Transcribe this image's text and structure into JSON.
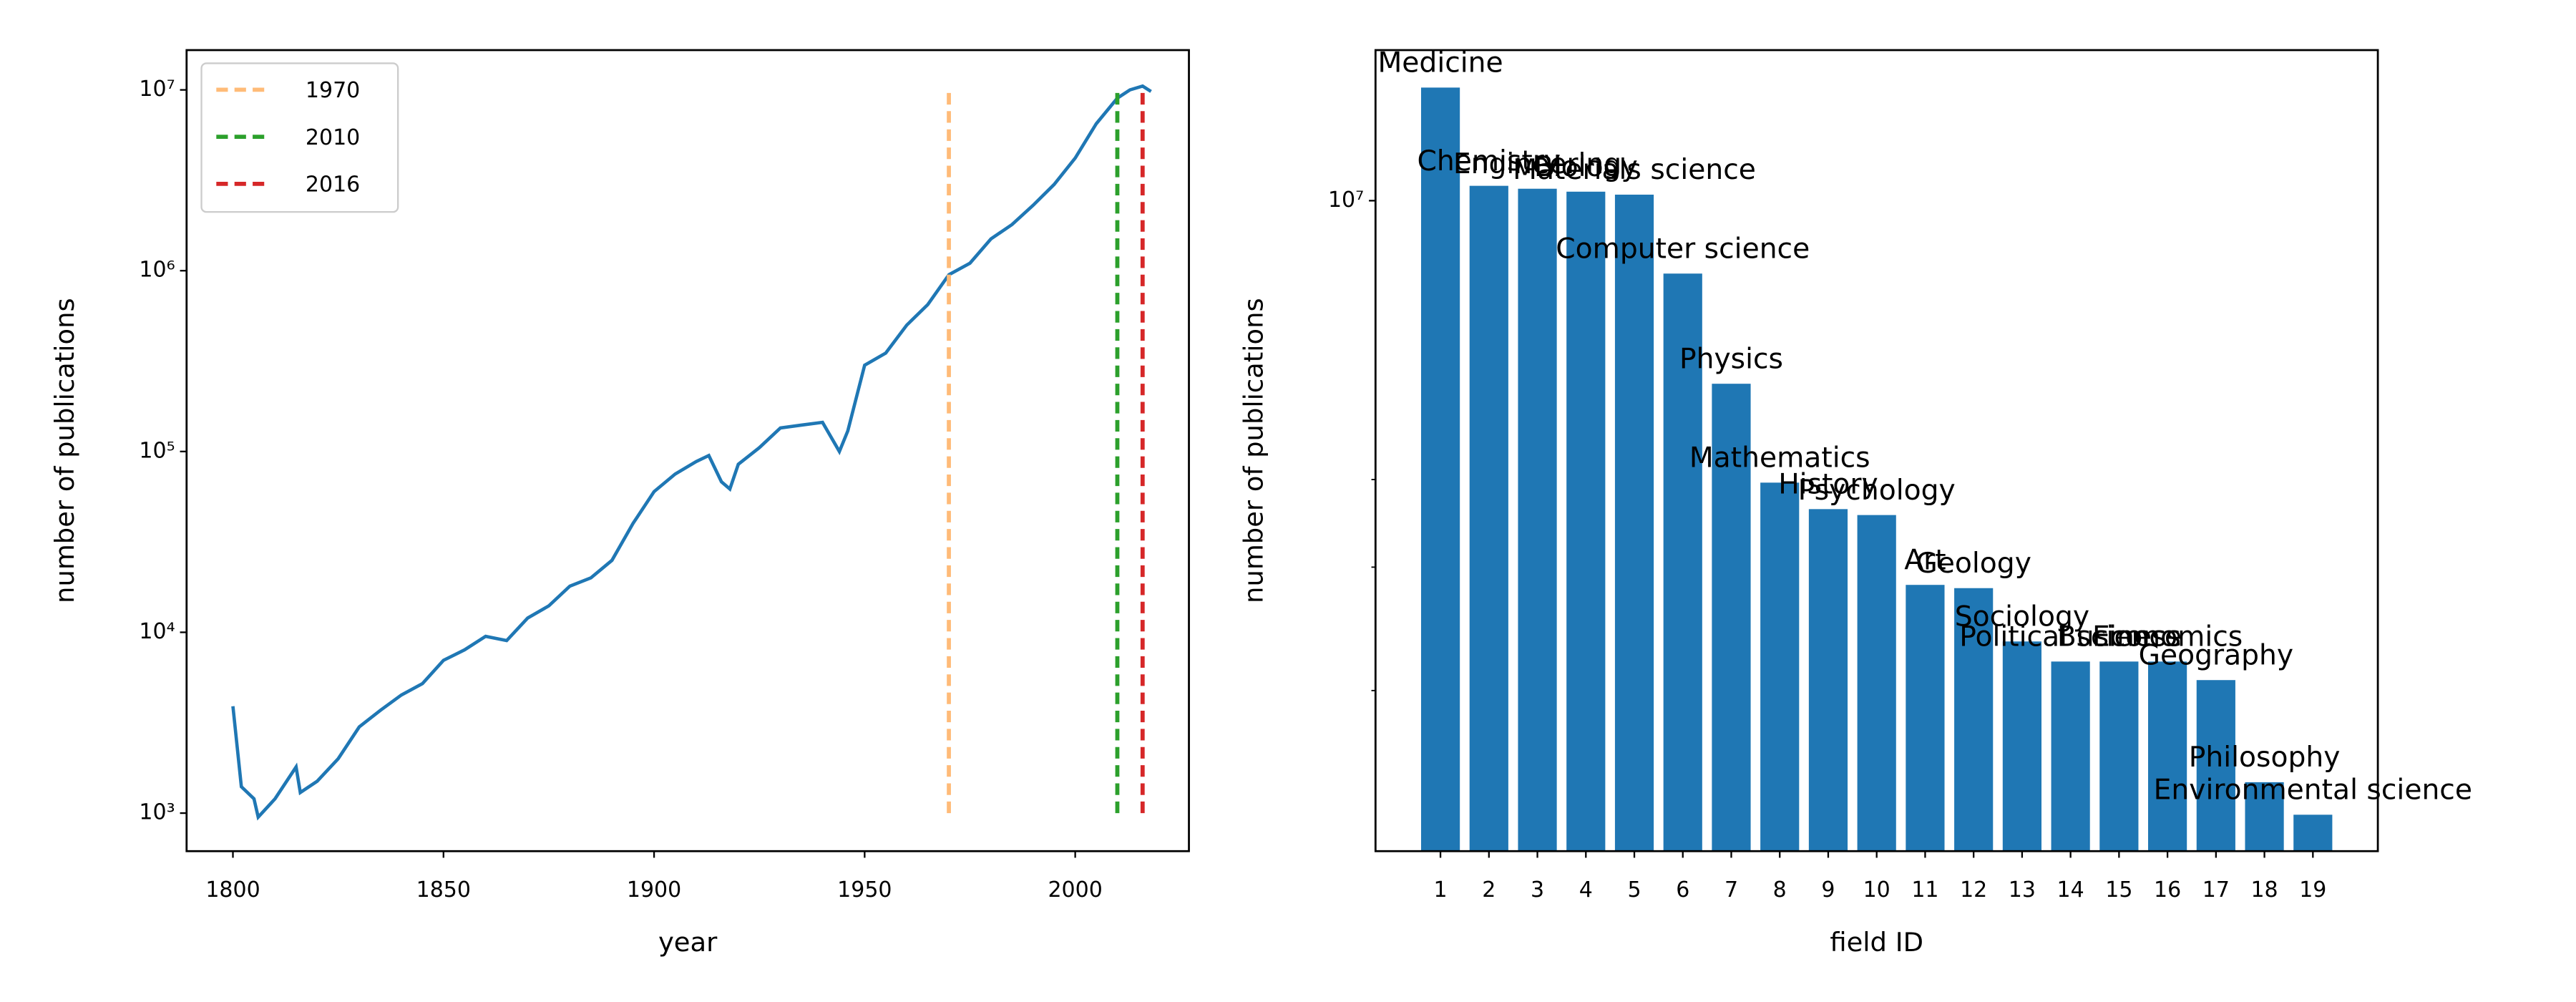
{
  "chart_data": [
    {
      "type": "line",
      "xlabel": "year",
      "ylabel": "number of publications",
      "x": [
        1800,
        1802,
        1805,
        1806,
        1810,
        1815,
        1816,
        1820,
        1825,
        1830,
        1835,
        1840,
        1845,
        1850,
        1855,
        1860,
        1865,
        1870,
        1875,
        1880,
        1885,
        1890,
        1895,
        1900,
        1905,
        1910,
        1913,
        1916,
        1918,
        1920,
        1925,
        1930,
        1935,
        1940,
        1944,
        1946,
        1950,
        1955,
        1960,
        1965,
        1970,
        1975,
        1980,
        1985,
        1990,
        1995,
        2000,
        2005,
        2010,
        2013,
        2016,
        2018
      ],
      "series": [
        {
          "color": "#1f77b4",
          "values": [
            3900,
            1400,
            1200,
            950,
            1200,
            1800,
            1300,
            1500,
            2000,
            3000,
            3700,
            4500,
            5200,
            7000,
            8000,
            9500,
            9000,
            12000,
            14000,
            18000,
            20000,
            25000,
            40000,
            60000,
            75000,
            88000,
            95000,
            68000,
            62000,
            85000,
            105000,
            135000,
            140000,
            145000,
            100000,
            130000,
            300000,
            350000,
            500000,
            650000,
            950000,
            1100000,
            1500000,
            1800000,
            2300000,
            3000000,
            4200000,
            6500000,
            9000000,
            10000000,
            10500000,
            9800000
          ]
        }
      ],
      "vlines": [
        {
          "name": "1970",
          "x": 1970,
          "color": "#ffbb78"
        },
        {
          "name": "2010",
          "x": 2010,
          "color": "#2ca02c"
        },
        {
          "name": "2016",
          "x": 2016,
          "color": "#d62728"
        }
      ],
      "vline_ylim": [
        1000,
        10000000
      ],
      "ylog": true,
      "legend": "upper left",
      "xlim": [
        1789,
        2027
      ],
      "ylim": [
        616,
        16600000
      ],
      "xticks": [
        1800,
        1850,
        1900,
        1950,
        2000
      ],
      "yticks": [
        {
          "value": 1000,
          "label": "10³"
        },
        {
          "value": 10000,
          "label": "10⁴"
        },
        {
          "value": 100000,
          "label": "10⁵"
        },
        {
          "value": 1000000,
          "label": "10⁶"
        },
        {
          "value": 10000000,
          "label": "10⁷"
        }
      ]
    },
    {
      "type": "bar",
      "xlabel": "field ID",
      "ylabel": "number of publications",
      "categories": [
        "1",
        "2",
        "3",
        "4",
        "5",
        "6",
        "7",
        "8",
        "9",
        "10",
        "11",
        "12",
        "13",
        "14",
        "15",
        "16",
        "17",
        "18",
        "19"
      ],
      "labels": [
        "Medicine",
        "Chemistry",
        "Engineering",
        "Biology",
        "Materials science",
        "Computer science",
        "Physics",
        "Mathematics",
        "History",
        "Psychology",
        "Art",
        "Geology",
        "Sociology",
        "Political science",
        "Business",
        "Economics",
        "Geography",
        "Philosophy",
        "Environmental science"
      ],
      "values": [
        14500000,
        10500000,
        10400000,
        10300000,
        10200000,
        7870000,
        5480000,
        3960000,
        3630000,
        3560000,
        2830000,
        2800000,
        2350000,
        2200000,
        2200000,
        2200000,
        2070000,
        1480000,
        1330000
      ],
      "color": "#1f77b4",
      "ylog": true,
      "ylim": [
        1180000,
        16400000
      ],
      "yticks": [
        {
          "value": 10000000,
          "label": "10⁷"
        }
      ],
      "yminorticks": [
        2000000,
        3000000,
        4000000
      ]
    }
  ]
}
